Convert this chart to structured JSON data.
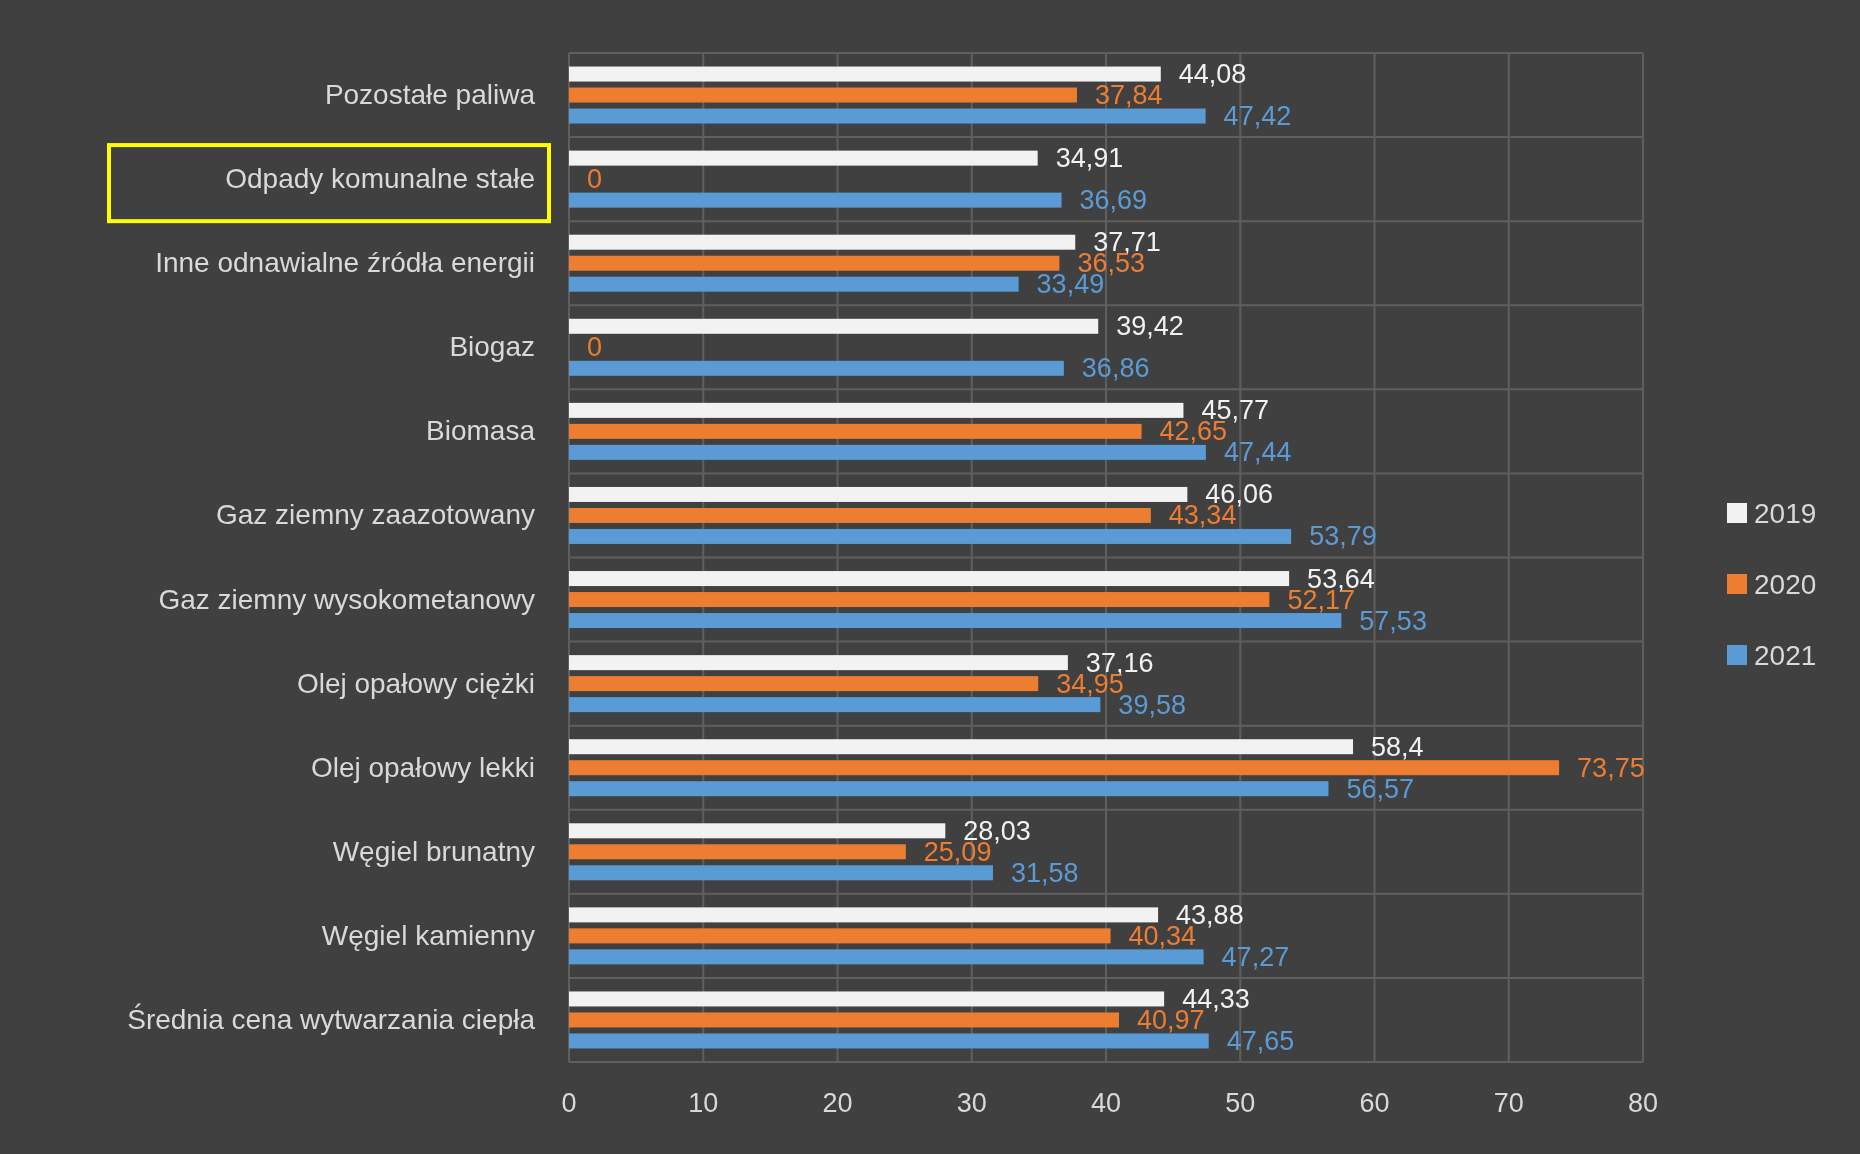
{
  "chart_data": {
    "type": "bar",
    "orientation": "horizontal",
    "categories": [
      "Pozostałe paliwa",
      "Odpady komunalne stałe",
      "Inne odnawialne źródła energii",
      "Biogaz",
      "Biomasa",
      "Gaz ziemny zaazotowany",
      "Gaz ziemny wysokometanowy",
      "Olej opałowy ciężki",
      "Olej opałowy lekki",
      "Węgiel brunatny",
      "Węgiel kamienny",
      "Średnia cena wytwarzania ciepła"
    ],
    "series": [
      {
        "name": "2019",
        "color": "#f2f2f2",
        "values": [
          44.08,
          34.91,
          37.71,
          39.42,
          45.77,
          46.06,
          53.64,
          37.16,
          58.4,
          28.03,
          43.88,
          44.33
        ],
        "value_labels": [
          "44,08",
          "34,91",
          "37,71",
          "39,42",
          "45,77",
          "46,06",
          "53,64",
          "37,16",
          "58,4",
          "28,03",
          "43,88",
          "44,33"
        ]
      },
      {
        "name": "2020",
        "color": "#ed7d31",
        "values": [
          37.84,
          0,
          36.53,
          0,
          42.65,
          43.34,
          52.17,
          34.95,
          73.75,
          25.09,
          40.34,
          40.97
        ],
        "value_labels": [
          "37,84",
          "0",
          "36,53",
          "0",
          "42,65",
          "43,34",
          "52,17",
          "34,95",
          "73,75",
          "25,09",
          "40,34",
          "40,97"
        ]
      },
      {
        "name": "2021",
        "color": "#5b9bd5",
        "values": [
          47.42,
          36.69,
          33.49,
          36.86,
          47.44,
          53.79,
          57.53,
          39.58,
          56.57,
          31.58,
          47.27,
          47.65
        ],
        "value_labels": [
          "47,42",
          "36,69",
          "33,49",
          "36,86",
          "47,44",
          "53,79",
          "57,53",
          "39,58",
          "56,57",
          "31,58",
          "47,27",
          "47,65"
        ]
      }
    ],
    "xlim": [
      0,
      80
    ],
    "xticks": [
      0,
      10,
      20,
      30,
      40,
      50,
      60,
      70,
      80
    ],
    "grid": "x",
    "legend": "right"
  }
}
